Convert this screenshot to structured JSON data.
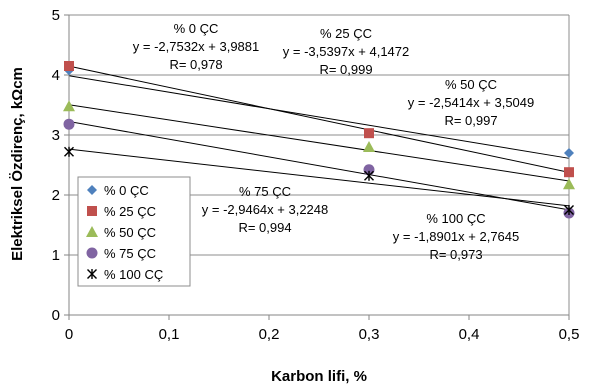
{
  "chart_data": {
    "type": "scatter",
    "xlabel": "Karbon lifi, %",
    "ylabel": "Elektriksel Özdirenç, kΩcm",
    "xlim": [
      0,
      0.5
    ],
    "ylim": [
      0,
      5
    ],
    "x_ticks": [
      "0",
      "0,1",
      "0,2",
      "0,3",
      "0,4",
      "0,5"
    ],
    "y_ticks": [
      "0",
      "1",
      "2",
      "3",
      "4",
      "5"
    ],
    "grid": "horizontal",
    "legend_position": "bottom-left",
    "series": [
      {
        "name": "% 0 ÇC",
        "marker": "diamond",
        "color": "#4F81BD",
        "points": [
          [
            0,
            4.08
          ],
          [
            0.3,
            3.03
          ],
          [
            0.5,
            2.7
          ]
        ],
        "trend": {
          "slope": -2.7532,
          "intercept": 3.9881
        }
      },
      {
        "name": "% 25 ÇC",
        "marker": "square",
        "color": "#C0504D",
        "points": [
          [
            0,
            4.15
          ],
          [
            0.3,
            3.03
          ],
          [
            0.5,
            2.38
          ]
        ],
        "trend": {
          "slope": -3.5397,
          "intercept": 4.1472
        }
      },
      {
        "name": "% 50 ÇC",
        "marker": "triangle",
        "color": "#9BBB59",
        "points": [
          [
            0,
            3.48
          ],
          [
            0.3,
            2.8
          ],
          [
            0.5,
            2.18
          ]
        ],
        "trend": {
          "slope": -2.5414,
          "intercept": 3.5049
        }
      },
      {
        "name": "% 75 ÇC",
        "marker": "circle",
        "color": "#8064A2",
        "points": [
          [
            0,
            3.18
          ],
          [
            0.3,
            2.42
          ],
          [
            0.5,
            1.7
          ]
        ],
        "trend": {
          "slope": -2.9464,
          "intercept": 3.2248
        }
      },
      {
        "name": "% 100 CÇ",
        "marker": "star",
        "color": "#000000",
        "points": [
          [
            0,
            2.72
          ],
          [
            0.3,
            2.32
          ],
          [
            0.5,
            1.75
          ]
        ],
        "trend": {
          "slope": -1.8901,
          "intercept": 2.7645
        }
      }
    ],
    "annotations": [
      {
        "lines": [
          "% 0 ÇC",
          "y = -2,7532x + 3,9881",
          "R= 0,978"
        ]
      },
      {
        "lines": [
          "% 25 ÇC",
          "y = -3,5397x + 4,1472",
          "R= 0,999"
        ]
      },
      {
        "lines": [
          "% 50 ÇC",
          "y = -2,5414x + 3,5049",
          "R= 0,997"
        ]
      },
      {
        "lines": [
          "% 75 ÇC",
          "y = -2,9464x + 3,2248",
          "R= 0,994"
        ]
      },
      {
        "lines": [
          "% 100 ÇC",
          "y = -1,8901x + 2,7645",
          "R= 0,973"
        ]
      }
    ]
  }
}
